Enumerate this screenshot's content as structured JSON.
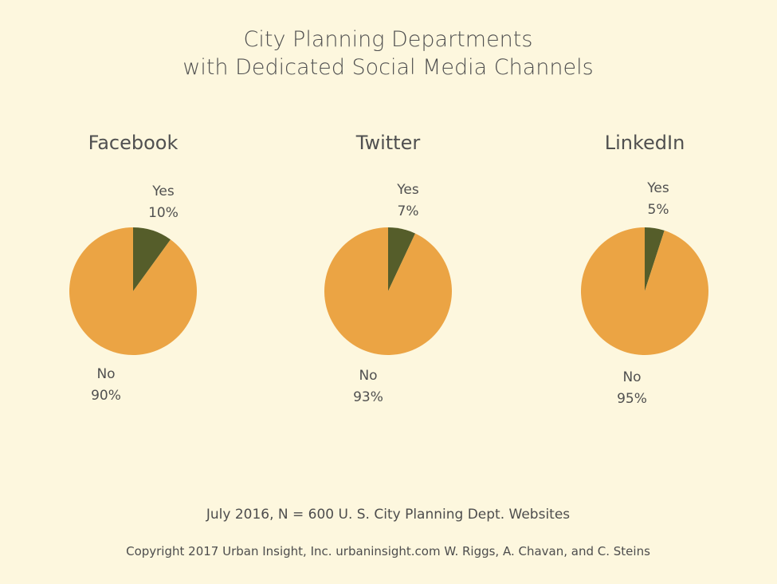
{
  "chart_data": {
    "type": "pie",
    "title": [
      "City Planning Departments",
      "with Dedicated Social Media Channels"
    ],
    "pies": [
      {
        "title": "Facebook",
        "slices": [
          {
            "label": "Yes",
            "value": 10,
            "value_label": "10%",
            "color": "#555d2a"
          },
          {
            "label": "No",
            "value": 90,
            "value_label": "90%",
            "color": "#eba444"
          }
        ]
      },
      {
        "title": "Twitter",
        "slices": [
          {
            "label": "Yes",
            "value": 7,
            "value_label": "7%",
            "color": "#555d2a"
          },
          {
            "label": "No",
            "value": 93,
            "value_label": "93%",
            "color": "#eba444"
          }
        ]
      },
      {
        "title": "LinkedIn",
        "slices": [
          {
            "label": "Yes",
            "value": 5,
            "value_label": "5%",
            "color": "#555d2a"
          },
          {
            "label": "No",
            "value": 95,
            "value_label": "95%",
            "color": "#eba444"
          }
        ]
      }
    ],
    "footnote": "July 2016, N = 600 U. S. City Planning Dept. Websites",
    "copyright": "Copyright 2017 Urban Insight, Inc. urbaninsight.com  W. Riggs, A. Chavan, and C. Steins"
  },
  "colors": {
    "background": "#fdf7de",
    "yes": "#555d2a",
    "no": "#eba444",
    "text": "#505050"
  }
}
